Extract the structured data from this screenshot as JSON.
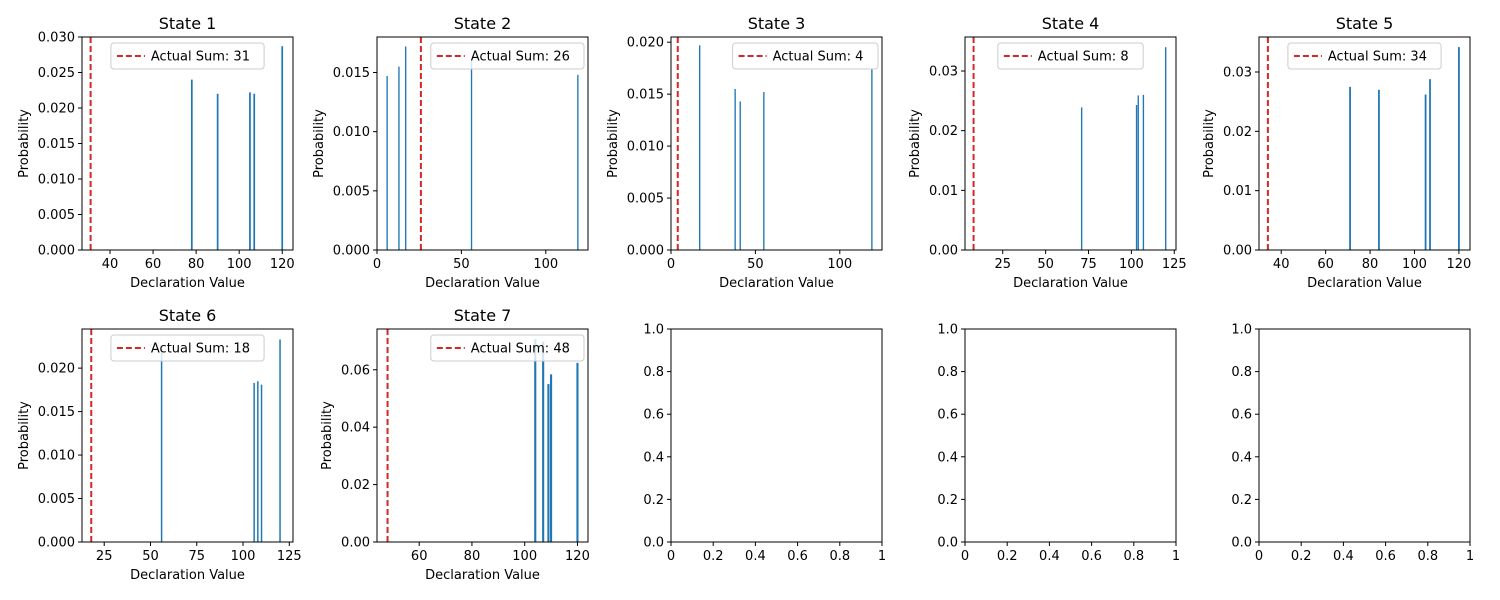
{
  "figure": {
    "nrows": 2,
    "ncols": 5
  },
  "colors": {
    "bar": "#1f77b4",
    "actual_line": "#d62728",
    "axis": "#000000",
    "legend_border": "#cccccc"
  },
  "chart_data": [
    {
      "type": "bar",
      "title": "State 1",
      "xlabel": "Declaration Value",
      "ylabel": "Probability",
      "xlim": [
        27,
        125
      ],
      "ylim": [
        0,
        0.03
      ],
      "xticks": [
        40,
        60,
        80,
        100,
        120
      ],
      "yticks": [
        0.0,
        0.005,
        0.01,
        0.015,
        0.02,
        0.025,
        0.03
      ],
      "ytick_decimals": 3,
      "x": [
        78,
        90,
        105,
        107,
        120
      ],
      "values": [
        0.024,
        0.022,
        0.0222,
        0.022,
        0.0287
      ],
      "actual_sum": 31,
      "legend": "Actual Sum: 31",
      "legend_loc": "upper center"
    },
    {
      "type": "bar",
      "title": "State 2",
      "xlabel": "Declaration Value",
      "ylabel": "Probability",
      "xlim": [
        0,
        125
      ],
      "ylim": [
        0,
        0.018
      ],
      "xticks": [
        0,
        50,
        100
      ],
      "yticks": [
        0.0,
        0.005,
        0.01,
        0.015
      ],
      "ytick_decimals": 3,
      "x": [
        6,
        13,
        17,
        56,
        119
      ],
      "values": [
        0.0147,
        0.0155,
        0.0172,
        0.016,
        0.0148
      ],
      "actual_sum": 26,
      "legend": "Actual Sum: 26",
      "legend_loc": "upper right"
    },
    {
      "type": "bar",
      "title": "State 3",
      "xlabel": "Declaration Value",
      "ylabel": "Probability",
      "xlim": [
        0,
        125
      ],
      "ylim": [
        0,
        0.0205
      ],
      "xticks": [
        0,
        50,
        100
      ],
      "yticks": [
        0.0,
        0.005,
        0.01,
        0.015,
        0.02
      ],
      "ytick_decimals": 3,
      "x": [
        17,
        38,
        41,
        55,
        119
      ],
      "values": [
        0.0197,
        0.0155,
        0.0143,
        0.0152,
        0.0174
      ],
      "actual_sum": 4,
      "legend": "Actual Sum: 4",
      "legend_loc": "upper right"
    },
    {
      "type": "bar",
      "title": "State 4",
      "xlabel": "Declaration Value",
      "ylabel": "Probability",
      "xlim": [
        3,
        126
      ],
      "ylim": [
        0,
        0.0357
      ],
      "xticks": [
        25,
        50,
        75,
        100,
        125
      ],
      "yticks": [
        0.0,
        0.01,
        0.02,
        0.03
      ],
      "ytick_decimals": 2,
      "x": [
        71,
        103,
        104,
        107,
        120
      ],
      "values": [
        0.0239,
        0.0243,
        0.0259,
        0.026,
        0.034
      ],
      "actual_sum": 8,
      "legend": "Actual Sum: 8",
      "legend_loc": "upper center"
    },
    {
      "type": "bar",
      "title": "State 5",
      "xlabel": "Declaration Value",
      "ylabel": "Probability",
      "xlim": [
        30,
        125
      ],
      "ylim": [
        0,
        0.0359
      ],
      "xticks": [
        40,
        60,
        80,
        100,
        120
      ],
      "yticks": [
        0.0,
        0.01,
        0.02,
        0.03
      ],
      "ytick_decimals": 2,
      "x": [
        71,
        84,
        105,
        107,
        120
      ],
      "values": [
        0.0275,
        0.027,
        0.0262,
        0.0288,
        0.0342
      ],
      "actual_sum": 34,
      "legend": "Actual Sum: 34",
      "legend_loc": "upper center"
    },
    {
      "type": "bar",
      "title": "State 6",
      "xlabel": "Declaration Value",
      "ylabel": "Probability",
      "xlim": [
        13,
        127
      ],
      "ylim": [
        0,
        0.0245
      ],
      "xticks": [
        25,
        50,
        75,
        100,
        125
      ],
      "yticks": [
        0.0,
        0.005,
        0.01,
        0.015,
        0.02
      ],
      "ytick_decimals": 3,
      "x": [
        56,
        106,
        108,
        110,
        120
      ],
      "values": [
        0.0222,
        0.0183,
        0.0185,
        0.0181,
        0.0233
      ],
      "actual_sum": 18,
      "legend": "Actual Sum: 18",
      "legend_loc": "upper center"
    },
    {
      "type": "bar",
      "title": "State 7",
      "xlabel": "Declaration Value",
      "ylabel": "Probability",
      "xlim": [
        44,
        124
      ],
      "ylim": [
        0,
        0.0742
      ],
      "xticks": [
        60,
        80,
        100,
        120
      ],
      "yticks": [
        0.0,
        0.02,
        0.04,
        0.06
      ],
      "ytick_decimals": 2,
      "x": [
        104,
        107,
        109,
        110,
        120
      ],
      "values": [
        0.0707,
        0.0698,
        0.055,
        0.0584,
        0.0624
      ],
      "actual_sum": 48,
      "legend": "Actual Sum: 48",
      "legend_loc": "upper right"
    },
    {
      "type": "empty",
      "xlim": [
        0,
        1
      ],
      "ylim": [
        0,
        1
      ],
      "xticks": [
        0.0,
        0.2,
        0.4,
        0.6,
        0.8,
        1.0
      ],
      "yticks": [
        0.0,
        0.2,
        0.4,
        0.6,
        0.8,
        1.0
      ],
      "ytick_decimals": 1
    },
    {
      "type": "empty",
      "xlim": [
        0,
        1
      ],
      "ylim": [
        0,
        1
      ],
      "xticks": [
        0.0,
        0.2,
        0.4,
        0.6,
        0.8,
        1.0
      ],
      "yticks": [
        0.0,
        0.2,
        0.4,
        0.6,
        0.8,
        1.0
      ],
      "ytick_decimals": 1
    },
    {
      "type": "empty",
      "xlim": [
        0,
        1
      ],
      "ylim": [
        0,
        1
      ],
      "xticks": [
        0.0,
        0.2,
        0.4,
        0.6,
        0.8,
        1.0
      ],
      "yticks": [
        0.0,
        0.2,
        0.4,
        0.6,
        0.8,
        1.0
      ],
      "ytick_decimals": 1
    }
  ]
}
